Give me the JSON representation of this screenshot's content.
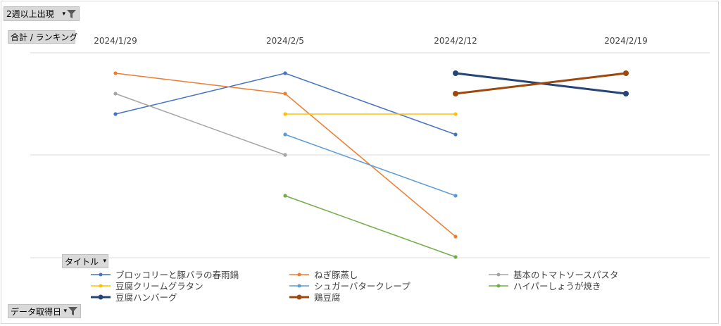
{
  "filters": {
    "top": {
      "label": "2週以上出現"
    },
    "value_field": {
      "label": "合計 / ランキング"
    },
    "series_field": {
      "label": "タイトル"
    },
    "axis_field": {
      "label": "データ取得日"
    }
  },
  "chart_data": {
    "type": "line",
    "categories": [
      "2024/1/29",
      "2024/2/5",
      "2024/2/12",
      "2024/2/19"
    ],
    "y_reversed": true,
    "ylim": [
      1,
      11
    ],
    "grid": true,
    "legend_position": "bottom",
    "series": [
      {
        "name": "ブロッコリーと豚バラの春雨鍋",
        "color": "#4472c4",
        "width": 1.5,
        "values": [
          3,
          1,
          4,
          null
        ]
      },
      {
        "name": "ねぎ豚蒸し",
        "color": "#ed7d31",
        "width": 1.5,
        "values": [
          1,
          2,
          null,
          null
        ]
      },
      {
        "name": "基本のトマトソースパスタ",
        "color": "#a5a5a5",
        "width": 1.5,
        "values": [
          2,
          5,
          null,
          null
        ]
      },
      {
        "name": "豆腐クリームグラタン",
        "color": "#ffc000",
        "width": 1.5,
        "values": [
          null,
          3,
          3,
          null
        ]
      },
      {
        "name": "シュガーバタークレープ",
        "color": "#5b9bd5",
        "width": 1.5,
        "values": [
          null,
          4,
          7,
          null
        ]
      },
      {
        "name": "ハイパーしょうが焼き",
        "color": "#70ad47",
        "width": 1.5,
        "values": [
          null,
          7,
          10,
          null
        ]
      },
      {
        "name": "豆腐ハンバーグ",
        "color": "#264478",
        "width": 3,
        "values": [
          null,
          null,
          1,
          2
        ]
      },
      {
        "name": "鶏豆腐",
        "color": "#9e480e",
        "width": 3,
        "values": [
          null,
          null,
          2,
          1
        ]
      }
    ],
    "segment_overrides": [
      {
        "series": 1,
        "from": 1,
        "to": 2,
        "to_value": 9
      }
    ]
  }
}
